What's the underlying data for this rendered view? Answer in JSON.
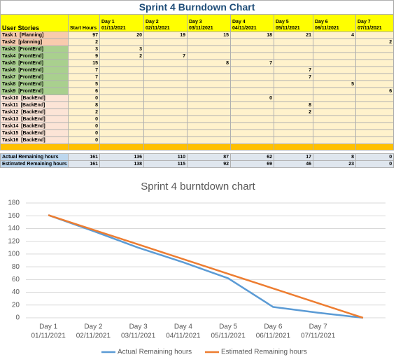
{
  "table": {
    "title": "Sprint 4 Burndown Chart",
    "header": [
      "User Stories",
      "Start Hours",
      [
        "Day 1",
        "01/11/2021"
      ],
      [
        "Day 2",
        "02/11/2021"
      ],
      [
        "Day 3",
        "03/11/2021"
      ],
      [
        "Day 4",
        "04/11/2021"
      ],
      [
        "Day 5",
        "05/11/2021"
      ],
      [
        "Day 6",
        "06/11/2021"
      ],
      [
        "Day 7",
        "07/11/2021"
      ]
    ],
    "rows": [
      [
        "Task 1  [Planning]",
        97,
        20,
        19,
        15,
        18,
        21,
        4,
        null
      ],
      [
        "Task2  [planning]",
        2,
        null,
        null,
        null,
        null,
        null,
        null,
        2
      ],
      [
        "Task3  [FrontEnd]",
        3,
        3,
        null,
        null,
        null,
        null,
        null,
        null
      ],
      [
        "Task4  [FrontEnd]",
        9,
        2,
        7,
        null,
        null,
        null,
        null,
        null
      ],
      [
        "Task5  [FrontEnd]",
        15,
        null,
        null,
        8,
        7,
        null,
        null,
        null
      ],
      [
        "Task6  [FrontEnd]",
        7,
        null,
        null,
        null,
        null,
        7,
        null,
        null
      ],
      [
        "Task7  [FrontEnd]",
        7,
        null,
        null,
        null,
        null,
        7,
        null,
        null
      ],
      [
        "Task8  [FrontEnd]",
        5,
        null,
        null,
        null,
        null,
        null,
        5,
        null
      ],
      [
        "Task9  [FrontEnd]",
        6,
        null,
        null,
        null,
        null,
        null,
        null,
        6
      ],
      [
        "Task10  [BackEnd]",
        0,
        null,
        null,
        null,
        0,
        null,
        null,
        null
      ],
      [
        "Task11  [BackEnd]",
        8,
        null,
        null,
        null,
        null,
        8,
        null,
        null
      ],
      [
        "Task12  [BackEnd]",
        2,
        null,
        null,
        null,
        null,
        2,
        null,
        null
      ],
      [
        "Task13  [BackEnd]",
        0,
        null,
        null,
        null,
        null,
        null,
        null,
        null
      ],
      [
        "Task14  [BackEnd]",
        0,
        null,
        null,
        null,
        null,
        null,
        null,
        null
      ],
      [
        "Task15  [BackEnd]",
        0,
        null,
        null,
        null,
        null,
        null,
        null,
        null
      ],
      [
        "Task16  [BackEnd]",
        0,
        null,
        null,
        null,
        null,
        null,
        null,
        null
      ]
    ],
    "row_colors": [
      "#f8cbad",
      "#f8cbad",
      "#a9d08e",
      "#a9d08e",
      "#a9d08e",
      "#a9d08e",
      "#a9d08e",
      "#a9d08e",
      "#a9d08e",
      "#fce4d6",
      "#fce4d6",
      "#fce4d6",
      "#fce4d6",
      "#fce4d6",
      "#fce4d6",
      "#fce4d6"
    ],
    "summary": [
      [
        "Actual Remaining hours",
        161,
        136,
        110,
        87,
        62,
        17,
        8,
        0
      ],
      [
        "Estimated Remaining hours",
        161,
        138,
        115,
        92,
        69,
        46,
        23,
        0
      ]
    ]
  },
  "chart_data": {
    "type": "line",
    "title": "Sprint 4 burntdown chart",
    "categories": [
      [
        "Day 1",
        "01/11/2021"
      ],
      [
        "Day 2",
        "02/11/2021"
      ],
      [
        "Day 3",
        "03/11/2021"
      ],
      [
        "Day 4",
        "04/11/2021"
      ],
      [
        "Day 5",
        "05/11/2021"
      ],
      [
        "Day 6",
        "06/11/2021"
      ],
      [
        "Day 7",
        "07/11/2021"
      ],
      null
    ],
    "series": [
      {
        "name": "Actual Remaining hours",
        "color": "#5b9bd5",
        "values": [
          161,
          136,
          110,
          87,
          62,
          17,
          8,
          0
        ]
      },
      {
        "name": "Estimated Remaining hours",
        "color": "#ed7d31",
        "values": [
          161,
          138,
          115,
          92,
          69,
          46,
          23,
          0
        ]
      }
    ],
    "ylim": [
      0,
      180
    ],
    "yticks": [
      0,
      20,
      40,
      60,
      80,
      100,
      120,
      140,
      160,
      180
    ],
    "grid": true,
    "legend": "bottom"
  }
}
